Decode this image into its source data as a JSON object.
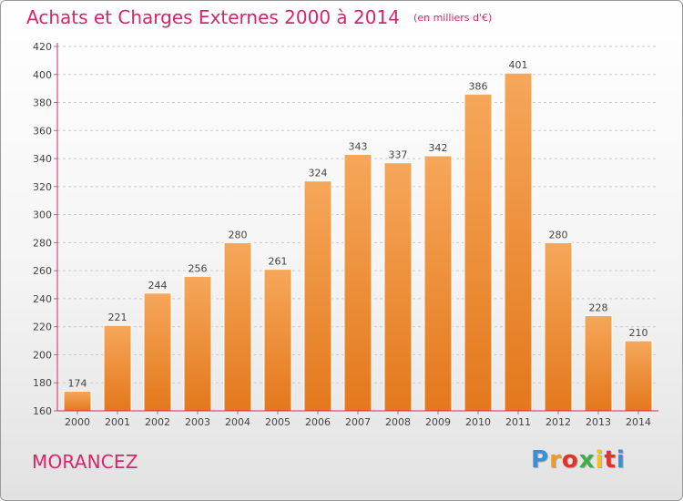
{
  "header": {
    "title": "Achats et Charges Externes 2000 à 2014",
    "subtitle": "(en milliers d'€)"
  },
  "footer": {
    "municipality": "MORANCEZ",
    "logo_letters": [
      "P",
      "r",
      "o",
      "x",
      "i",
      "t",
      "i"
    ],
    "logo_colors": [
      "#3a8fd8",
      "#f29b1d",
      "#e0342b",
      "#3fae49",
      "#f2c41d",
      "#e0342b",
      "#3a8fd8"
    ]
  },
  "colors": {
    "bar_top": "#f6a75a",
    "bar_bottom": "#e3781c",
    "bar_edge": "#ffffff",
    "accent": "#d8246b",
    "grid": "#cccccc",
    "axis": "#d8246b"
  },
  "chart_data": {
    "type": "bar",
    "title": "Achats et Charges Externes 2000 à 2014",
    "subtitle": "(en milliers d'€)",
    "categories": [
      "2000",
      "2001",
      "2002",
      "2003",
      "2004",
      "2005",
      "2006",
      "2007",
      "2008",
      "2009",
      "2010",
      "2011",
      "2012",
      "2013",
      "2014"
    ],
    "values": [
      174,
      221,
      244,
      256,
      280,
      261,
      324,
      343,
      337,
      342,
      386,
      401,
      280,
      228,
      210
    ],
    "ylim": [
      160,
      420
    ],
    "yticks": [
      160,
      180,
      200,
      220,
      240,
      260,
      280,
      300,
      320,
      340,
      360,
      380,
      400,
      420
    ],
    "grid": "horizontal-dashed",
    "data_labels": true,
    "xlabel": "",
    "ylabel": ""
  }
}
